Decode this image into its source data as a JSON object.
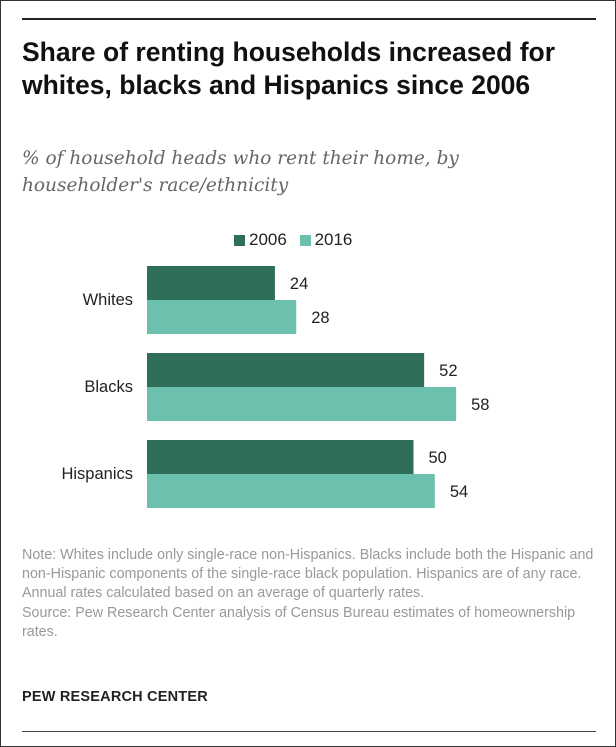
{
  "title": "Share of renting households increased for whites, blacks and Hispanics since 2006",
  "subtitle": "% of household heads who rent their home, by householder's race/ethnicity",
  "legend": [
    {
      "label": "2006",
      "color": "#2f6e5a"
    },
    {
      "label": "2016",
      "color": "#6bc1ad"
    }
  ],
  "note": "Note: Whites include only single-race non-Hispanics. Blacks include both the Hispanic and non-Hispanic components of the single-race black population. Hispanics are of any race. Annual rates calculated based on an average of quarterly rates.",
  "source": "Source: Pew Research Center analysis of Census Bureau estimates of homeownership rates.",
  "brand": "PEW RESEARCH CENTER",
  "chart_data": {
    "type": "bar",
    "orientation": "horizontal",
    "categories": [
      "Whites",
      "Blacks",
      "Hispanics"
    ],
    "series": [
      {
        "name": "2006",
        "values": [
          24,
          52,
          50
        ],
        "color": "#2f6e5a"
      },
      {
        "name": "2016",
        "values": [
          28,
          58,
          54
        ],
        "color": "#6bc1ad"
      }
    ],
    "xlim": [
      0,
      60
    ],
    "grid": false,
    "legend_position": "top",
    "data_labels": true
  }
}
